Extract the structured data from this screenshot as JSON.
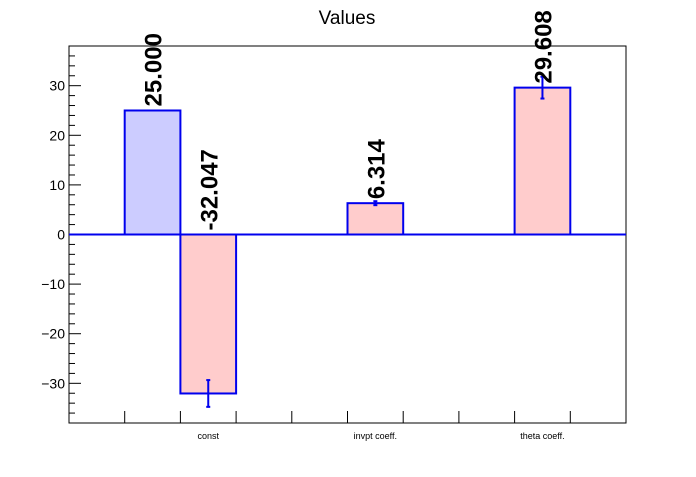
{
  "chart_data": {
    "type": "bar",
    "title": "Values",
    "xlabel": "",
    "ylabel": "",
    "ylim": [
      -38,
      38
    ],
    "grid": false,
    "categories": [
      "const",
      "invpt coeff.",
      "theta coeff."
    ],
    "series": [
      {
        "color": "#ccccff",
        "values": [
          25.0,
          null,
          null
        ],
        "errors": [
          0,
          null,
          null
        ],
        "labels": [
          "25.000",
          "",
          ""
        ]
      },
      {
        "color": "#ffcccc",
        "values": [
          -32.047,
          6.314,
          29.608
        ],
        "errors": [
          2.7,
          0.4,
          2.2
        ],
        "labels": [
          "-32.047",
          "6.314",
          "29.608"
        ]
      }
    ],
    "y_ticks": [
      30,
      20,
      10,
      0,
      -10,
      -20,
      -30
    ],
    "y_tick_labels": [
      "30",
      "20",
      "10",
      "0",
      "−10",
      "−20",
      "−30"
    ],
    "stroke_color": "#0000ee"
  }
}
